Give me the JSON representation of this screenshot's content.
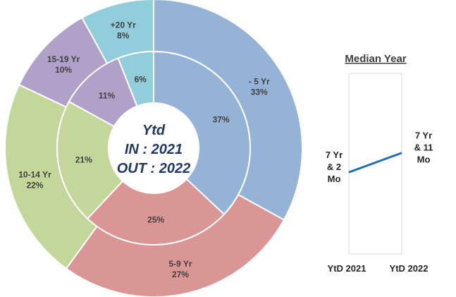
{
  "colors": {
    "blue": "#95b3d7",
    "red": "#da9694",
    "green": "#c4d79b",
    "purple": "#b1a0c7",
    "cyan": "#92cddc",
    "line": "#1f6fb5",
    "center_text": "#1f3864"
  },
  "chart_data": [
    {
      "type": "donut",
      "title": "Ytd IN : 2021 OUT : 2022",
      "center_text": [
        "Ytd",
        "IN : 2021",
        "OUT : 2022"
      ],
      "categories": [
        "- 5 Yr",
        "5-9 Yr",
        "10-14 Yr",
        "15-19 Yr",
        "+20 Yr"
      ],
      "series": [
        {
          "name": "OUT : 2022 (outer ring)",
          "values": [
            33,
            27,
            22,
            10,
            8
          ],
          "labels": [
            "33%",
            "27%",
            "22%",
            "10%",
            "8%"
          ]
        },
        {
          "name": "IN : 2021 (inner ring)",
          "values": [
            37,
            25,
            21,
            11,
            6
          ],
          "labels": [
            "37%",
            "25%",
            "21%",
            "11%",
            "6%"
          ]
        }
      ],
      "slice_colors": [
        "#95b3d7",
        "#da9694",
        "#c4d79b",
        "#b1a0c7",
        "#92cddc"
      ]
    },
    {
      "type": "line",
      "title": "Median Year",
      "categories": [
        "YtD 2021",
        "YtD 2022"
      ],
      "values_years": [
        7.167,
        7.917
      ],
      "data_labels": [
        [
          "7 Yr",
          "& 2",
          "Mo"
        ],
        [
          "7 Yr",
          "& 11",
          "Mo"
        ]
      ],
      "ylim": [
        4,
        11
      ]
    }
  ]
}
